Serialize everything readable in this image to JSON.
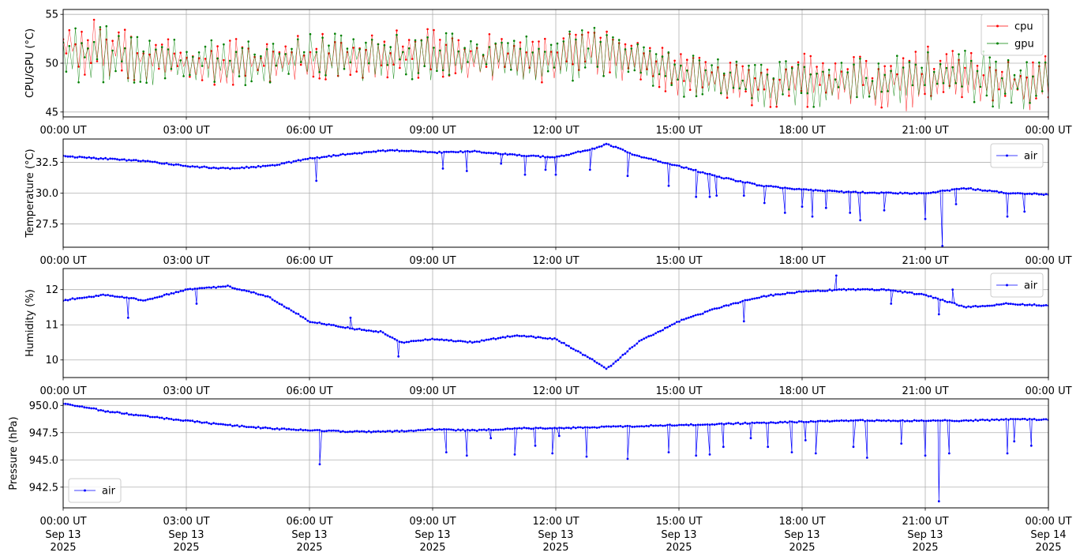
{
  "figure": {
    "x_ticks": [
      "00:00 UT",
      "03:00 UT",
      "06:00 UT",
      "09:00 UT",
      "12:00 UT",
      "15:00 UT",
      "18:00 UT",
      "21:00 UT",
      "00:00 UT"
    ],
    "x_dates": [
      "Sep 13\n2025",
      "Sep 13\n2025",
      "Sep 13\n2025",
      "Sep 13\n2025",
      "Sep 13\n2025",
      "Sep 13\n2025",
      "Sep 13\n2025",
      "Sep 13\n2025",
      "Sep 14\n2025"
    ]
  },
  "colors": {
    "cpu": "#ff0000",
    "gpu": "#008000",
    "air": "#0000ff",
    "grid": "#b0b0b0"
  },
  "chart_data": [
    {
      "type": "line",
      "ylabel": "CPU/GPU (°C)",
      "ylim": [
        44.5,
        55.5
      ],
      "yticks": [
        "45",
        "50",
        "55"
      ],
      "ytick_values": [
        45,
        50,
        55
      ],
      "legend_position": "top-right",
      "grid": true,
      "x": [
        "00:00",
        "01:00",
        "02:00",
        "03:00",
        "04:00",
        "05:00",
        "06:00",
        "07:00",
        "08:00",
        "09:00",
        "10:00",
        "11:00",
        "12:00",
        "13:00",
        "14:00",
        "15:00",
        "16:00",
        "17:00",
        "18:00",
        "19:00",
        "20:00",
        "21:00",
        "22:00",
        "23:00",
        "24:00"
      ],
      "series": [
        {
          "name": "cpu",
          "color": "#ff0000",
          "low": [
            48.5,
            48.5,
            48.0,
            47.5,
            47.5,
            47.5,
            48.0,
            48.0,
            48.0,
            48.0,
            48.0,
            48.0,
            48.0,
            48.5,
            48.0,
            46.5,
            46.0,
            45.5,
            45.5,
            45.5,
            45.0,
            45.0,
            45.5,
            45.0,
            45.0
          ],
          "high": [
            54.5,
            54.5,
            52.5,
            52.5,
            52.5,
            53.0,
            53.0,
            53.5,
            53.5,
            53.5,
            53.0,
            53.0,
            53.0,
            53.5,
            52.5,
            51.0,
            50.5,
            50.0,
            51.0,
            51.0,
            51.0,
            52.0,
            52.0,
            51.0,
            51.0
          ]
        },
        {
          "name": "gpu",
          "color": "#008000",
          "low": [
            48.0,
            48.0,
            47.5,
            47.5,
            47.5,
            47.5,
            48.0,
            48.0,
            48.0,
            48.0,
            48.0,
            48.0,
            48.0,
            48.5,
            48.0,
            46.5,
            46.0,
            45.5,
            45.5,
            45.5,
            45.0,
            45.5,
            45.5,
            45.0,
            45.5
          ],
          "high": [
            54.0,
            54.0,
            52.5,
            52.5,
            52.5,
            52.5,
            53.0,
            53.5,
            53.5,
            53.5,
            53.0,
            53.0,
            53.0,
            54.0,
            52.5,
            51.0,
            50.5,
            50.0,
            50.5,
            50.5,
            50.5,
            51.5,
            52.0,
            51.0,
            50.5
          ]
        }
      ]
    },
    {
      "type": "line",
      "ylabel": "Temperature (°C)",
      "ylim": [
        25.6,
        34.4
      ],
      "yticks": [
        "27.5",
        "30.0",
        "32.5"
      ],
      "ytick_values": [
        27.5,
        30.0,
        32.5
      ],
      "legend_position": "top-right",
      "grid": true,
      "x": [
        "00:00",
        "01:00",
        "02:00",
        "03:00",
        "04:00",
        "05:00",
        "06:00",
        "07:00",
        "08:00",
        "09:00",
        "10:00",
        "11:00",
        "12:00",
        "13:00",
        "13:15",
        "14:00",
        "15:00",
        "16:00",
        "17:00",
        "18:00",
        "19:00",
        "20:00",
        "21:00",
        "22:00",
        "23:00",
        "24:00"
      ],
      "series": [
        {
          "name": "air",
          "color": "#0000ff",
          "values": [
            33.0,
            32.8,
            32.6,
            32.2,
            32.0,
            32.2,
            32.8,
            33.2,
            33.5,
            33.3,
            33.4,
            33.1,
            32.9,
            33.7,
            34.0,
            33.0,
            32.2,
            31.3,
            30.6,
            30.3,
            30.1,
            30.0,
            30.0,
            30.4,
            30.0,
            29.9
          ],
          "dips": [
            [
              "06:10",
              31.0
            ],
            [
              "09:15",
              32.0
            ],
            [
              "09:50",
              31.8
            ],
            [
              "10:40",
              32.4
            ],
            [
              "11:15",
              31.5
            ],
            [
              "11:45",
              31.9
            ],
            [
              "12:00",
              31.5
            ],
            [
              "12:50",
              31.9
            ],
            [
              "13:45",
              31.4
            ],
            [
              "14:45",
              30.6
            ],
            [
              "15:25",
              29.7
            ],
            [
              "15:45",
              29.7
            ],
            [
              "15:55",
              29.8
            ],
            [
              "16:35",
              29.8
            ],
            [
              "17:05",
              29.2
            ],
            [
              "17:35",
              28.4
            ],
            [
              "18:00",
              28.9
            ],
            [
              "18:15",
              28.1
            ],
            [
              "18:35",
              28.8
            ],
            [
              "19:10",
              28.4
            ],
            [
              "19:25",
              27.8
            ],
            [
              "20:00",
              28.6
            ],
            [
              "21:00",
              27.9
            ],
            [
              "21:25",
              25.7
            ],
            [
              "21:45",
              29.1
            ],
            [
              "23:00",
              28.1
            ],
            [
              "23:25",
              28.5
            ]
          ]
        }
      ]
    },
    {
      "type": "line",
      "ylabel": "Humidity (%)",
      "ylim": [
        9.5,
        12.6
      ],
      "yticks": [
        "10",
        "11",
        "12"
      ],
      "ytick_values": [
        10,
        11,
        12
      ],
      "legend_position": "top-right",
      "grid": true,
      "x": [
        "00:00",
        "01:00",
        "02:00",
        "03:00",
        "04:00",
        "05:00",
        "06:00",
        "07:00",
        "07:45",
        "08:15",
        "09:00",
        "10:00",
        "11:00",
        "12:00",
        "12:45",
        "13:15",
        "14:00",
        "15:00",
        "16:00",
        "17:00",
        "18:00",
        "19:00",
        "20:00",
        "21:00",
        "22:00",
        "23:00",
        "24:00"
      ],
      "series": [
        {
          "name": "air",
          "color": "#0000ff",
          "values": [
            11.7,
            11.85,
            11.7,
            12.0,
            12.1,
            11.8,
            11.1,
            10.9,
            10.8,
            10.5,
            10.6,
            10.5,
            10.7,
            10.6,
            10.1,
            9.75,
            10.5,
            11.1,
            11.5,
            11.8,
            11.95,
            12.0,
            12.0,
            11.85,
            11.5,
            11.6,
            11.55
          ],
          "dips": [
            [
              "01:35",
              11.2
            ],
            [
              "03:15",
              11.6
            ],
            [
              "07:00",
              11.2
            ],
            [
              "08:10",
              10.1
            ],
            [
              "16:35",
              11.1
            ],
            [
              "18:50",
              12.4
            ],
            [
              "20:10",
              11.6
            ],
            [
              "21:20",
              11.3
            ],
            [
              "21:40",
              12.0
            ]
          ]
        }
      ]
    },
    {
      "type": "line",
      "ylabel": "Pressure (hPa)",
      "ylim": [
        940.6,
        950.6
      ],
      "yticks": [
        "942.5",
        "945.0",
        "947.5",
        "950.0"
      ],
      "ytick_values": [
        942.5,
        945.0,
        947.5,
        950.0
      ],
      "legend_position": "lower-left",
      "grid": true,
      "x": [
        "00:00",
        "01:00",
        "02:00",
        "03:00",
        "04:00",
        "05:00",
        "06:00",
        "07:00",
        "08:00",
        "09:00",
        "10:00",
        "11:00",
        "12:00",
        "13:00",
        "14:00",
        "15:00",
        "16:00",
        "17:00",
        "18:00",
        "19:00",
        "20:00",
        "21:00",
        "22:00",
        "23:00",
        "24:00"
      ],
      "series": [
        {
          "name": "air",
          "color": "#0000ff",
          "values": [
            950.2,
            949.5,
            949.0,
            948.6,
            948.2,
            947.9,
            947.7,
            947.6,
            947.6,
            947.8,
            947.7,
            947.9,
            947.9,
            948.0,
            948.1,
            948.2,
            948.3,
            948.4,
            948.5,
            948.6,
            948.6,
            948.6,
            948.6,
            948.7,
            948.7
          ],
          "dips": [
            [
              "06:15",
              944.6
            ],
            [
              "09:20",
              945.7
            ],
            [
              "09:50",
              945.4
            ],
            [
              "10:25",
              947.0
            ],
            [
              "11:00",
              945.5
            ],
            [
              "11:30",
              946.3
            ],
            [
              "11:55",
              945.6
            ],
            [
              "12:05",
              947.2
            ],
            [
              "12:45",
              945.3
            ],
            [
              "13:45",
              945.1
            ],
            [
              "14:45",
              945.7
            ],
            [
              "15:25",
              945.4
            ],
            [
              "15:45",
              945.5
            ],
            [
              "16:05",
              946.2
            ],
            [
              "16:45",
              947.0
            ],
            [
              "17:10",
              946.2
            ],
            [
              "17:45",
              945.7
            ],
            [
              "18:05",
              946.8
            ],
            [
              "18:20",
              945.6
            ],
            [
              "19:15",
              946.2
            ],
            [
              "19:35",
              945.2
            ],
            [
              "20:25",
              946.5
            ],
            [
              "21:00",
              945.4
            ],
            [
              "21:20",
              941.2
            ],
            [
              "21:35",
              945.6
            ],
            [
              "23:00",
              945.6
            ],
            [
              "23:10",
              946.7
            ],
            [
              "23:35",
              946.3
            ]
          ]
        }
      ]
    }
  ]
}
